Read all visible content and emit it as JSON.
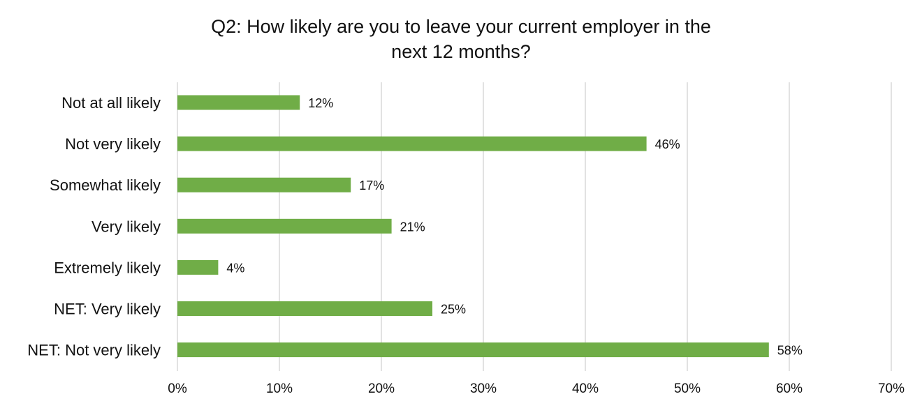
{
  "chart_data": {
    "type": "bar",
    "orientation": "horizontal",
    "title_lines": [
      "Q2: How likely are you to leave your current employer in the",
      "next 12 months?"
    ],
    "categories": [
      "Not at all likely",
      "Not very likely",
      "Somewhat likely",
      "Very likely",
      "Extremely likely",
      "NET: Very likely",
      "NET: Not very likely"
    ],
    "values": [
      12,
      46,
      17,
      21,
      4,
      25,
      58
    ],
    "data_labels": [
      "12%",
      "46%",
      "17%",
      "21%",
      "4%",
      "25%",
      "58%"
    ],
    "x_ticks": [
      0,
      10,
      20,
      30,
      40,
      50,
      60,
      70
    ],
    "x_tick_labels": [
      "0%",
      "10%",
      "20%",
      "30%",
      "40%",
      "50%",
      "60%",
      "70%"
    ],
    "xlim": [
      0,
      70
    ],
    "grid": true,
    "legend": "none",
    "bar_color": "#70ad47",
    "grid_color": "#d9d9d9"
  }
}
